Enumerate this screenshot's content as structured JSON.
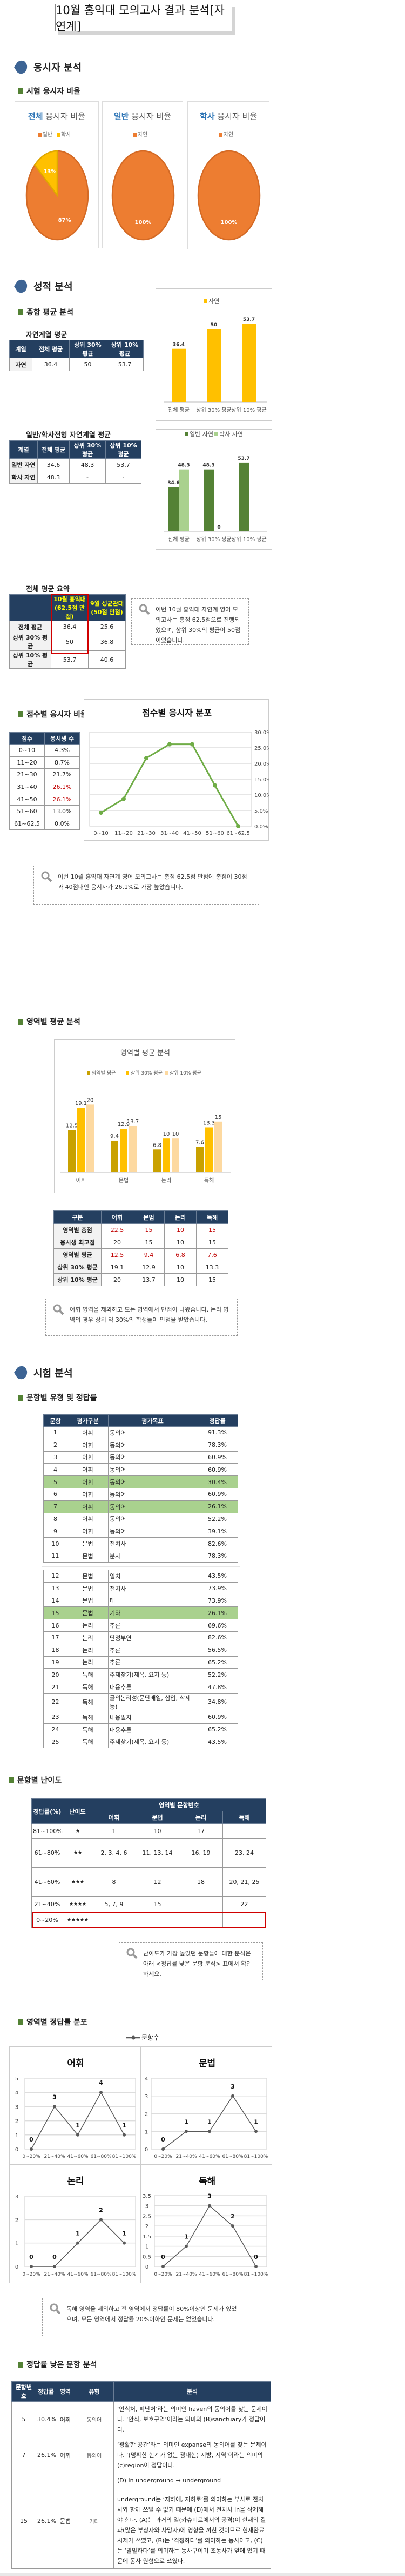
{
  "title": "10월 홍익대 모의고사 결과 분석[자연계]",
  "sections": {
    "applicants": "응시자 분석",
    "scores": "성적 분석",
    "exam": "시험 분석"
  },
  "subheadings": {
    "ratio": "시험 응시자 비율",
    "overall": "종합 평균 분석",
    "score_dist": "점수별 응시자 비율",
    "area_avg": "영역별 평균 분석",
    "item_type": "문항별 유형 및 정답률",
    "difficulty": "문항별 난이도",
    "area_rate": "영역별 정답률 분포",
    "low_items": "정답률 낮은 문항 분석"
  },
  "colors": {
    "navy": "#243F60",
    "orange": "#ED7D31",
    "yellow": "#FFC000",
    "green": "#548235",
    "light_green": "#A9D18E",
    "red": "#C00000",
    "accent_blue": "#2E75B6"
  },
  "pies": [
    {
      "title_accent": "전체",
      "title_rest": " 응시자 비율",
      "legend": [
        {
          "label": "일반",
          "color": "#ED7D31"
        },
        {
          "label": "학사",
          "color": "#FFC000"
        }
      ],
      "slices": [
        {
          "label": "일반",
          "value": 87,
          "text": "87%",
          "color": "#ED7D31"
        },
        {
          "label": "학사",
          "value": 13,
          "text": "13%",
          "color": "#FFC000"
        }
      ]
    },
    {
      "title_accent": "일반",
      "title_rest": " 응시자 비율",
      "legend": [
        {
          "label": "자연",
          "color": "#ED7D31"
        }
      ],
      "slices": [
        {
          "label": "자연",
          "value": 100,
          "text": "100%",
          "color": "#ED7D31"
        }
      ]
    },
    {
      "title_accent": "학사",
      "title_rest": " 응시자 비율",
      "legend": [
        {
          "label": "자연",
          "color": "#ED7D31"
        }
      ],
      "slices": [
        {
          "label": "자연",
          "value": 100,
          "text": "100%",
          "color": "#ED7D31"
        }
      ]
    }
  ],
  "natural_avg": {
    "caption": "자연계열 평균",
    "headers": [
      "계열",
      "전체 평균",
      "상위 30% 평균",
      "상위 10% 평균"
    ],
    "rows": [
      [
        "자연",
        "36.4",
        "50",
        "53.7"
      ]
    ]
  },
  "track_avg": {
    "caption": "일반/학사전형 자연계열 평균",
    "headers": [
      "계열",
      "전체 평균",
      "상위 30% 평균",
      "상위 10% 평균"
    ],
    "rows": [
      [
        "일반 자연",
        "34.6",
        "48.3",
        "53.7"
      ],
      [
        "학사 자연",
        "48.3",
        "-",
        "-"
      ]
    ]
  },
  "summary": {
    "caption": "전체 평균 요약",
    "headers": [
      "",
      "10월 홍익대\n(62.5점 만점)",
      "9월 성균관대\n(50점 만점)"
    ],
    "rows": [
      [
        "전체 평균",
        "36.4",
        "25.6"
      ],
      [
        "상위 30% 평균",
        "50",
        "36.8"
      ],
      [
        "상위 10% 평균",
        "53.7",
        "40.6"
      ]
    ]
  },
  "score_table": {
    "headers": [
      "점수",
      "응시생 수"
    ],
    "rows": [
      [
        "0~10",
        "4.3%"
      ],
      [
        "11~20",
        "8.7%"
      ],
      [
        "21~30",
        "21.7%"
      ],
      [
        "31~40",
        "26.1%"
      ],
      [
        "41~50",
        "26.1%"
      ],
      [
        "51~60",
        "13.0%"
      ],
      [
        "61~62.5",
        "0.0%"
      ]
    ],
    "emphasized": [
      "31~40",
      "41~50"
    ]
  },
  "area_table": {
    "headers": [
      "구분",
      "어휘",
      "문법",
      "논리",
      "독해"
    ],
    "rows": [
      [
        "영역별 총점",
        "22.5",
        "15",
        "10",
        "15"
      ],
      [
        "응시생 최고점",
        "20",
        "15",
        "10",
        "15"
      ],
      [
        "영역별 평균",
        "12.5",
        "9.4",
        "6.8",
        "7.6"
      ],
      [
        "상위 30% 평균",
        "19.1",
        "12.9",
        "10",
        "13.3"
      ],
      [
        "상위 10% 평균",
        "20",
        "13.7",
        "10",
        "15"
      ]
    ],
    "red_rows": [
      "영역별 총점",
      "영역별 평균"
    ]
  },
  "items": {
    "headers": [
      "문항",
      "평가구분",
      "평가목표",
      "정답률"
    ],
    "rows": [
      [
        "1",
        "어휘",
        "동의어",
        "91.3%"
      ],
      [
        "2",
        "어휘",
        "동의어",
        "78.3%"
      ],
      [
        "3",
        "어휘",
        "동의어",
        "60.9%"
      ],
      [
        "4",
        "어휘",
        "동의어",
        "60.9%"
      ],
      [
        "5",
        "어휘",
        "동의어",
        "30.4%"
      ],
      [
        "6",
        "어휘",
        "동의어",
        "60.9%"
      ],
      [
        "7",
        "어휘",
        "동의어",
        "26.1%"
      ],
      [
        "8",
        "어휘",
        "동의어",
        "52.2%"
      ],
      [
        "9",
        "어휘",
        "동의어",
        "39.1%"
      ],
      [
        "10",
        "문법",
        "전치사",
        "82.6%"
      ],
      [
        "11",
        "문법",
        "분사",
        "78.3%"
      ],
      [
        "12",
        "문법",
        "일치",
        "43.5%"
      ],
      [
        "13",
        "문법",
        "전치사",
        "73.9%"
      ],
      [
        "14",
        "문법",
        "태",
        "73.9%"
      ],
      [
        "15",
        "문법",
        "기타",
        "26.1%"
      ],
      [
        "16",
        "논리",
        "추론",
        "69.6%"
      ],
      [
        "17",
        "논리",
        "단정부연",
        "82.6%"
      ],
      [
        "18",
        "논리",
        "추론",
        "56.5%"
      ],
      [
        "19",
        "논리",
        "추론",
        "65.2%"
      ],
      [
        "20",
        "독해",
        "주제찾기(제목, 요지 등)",
        "52.2%"
      ],
      [
        "21",
        "독해",
        "내용추론",
        "47.8%"
      ],
      [
        "22",
        "독해",
        "글의논리성(문단배열, 삽입, 삭제 등)",
        "34.8%"
      ],
      [
        "23",
        "독해",
        "내용일치",
        "60.9%"
      ],
      [
        "24",
        "독해",
        "내용추론",
        "65.2%"
      ],
      [
        "25",
        "독해",
        "주제찾기(제목, 요지 등)",
        "43.5%"
      ]
    ],
    "highlighted": [
      "5",
      "7",
      "15"
    ]
  },
  "difficulty": {
    "headers": {
      "rate": "정답률(%)",
      "level": "난이도",
      "group": "영역별 문항번호",
      "areas": [
        "어휘",
        "문법",
        "논리",
        "독해"
      ]
    },
    "rows": [
      {
        "rate": "81~100%",
        "stars": "★",
        "cells": [
          "1",
          "10",
          "17",
          ""
        ]
      },
      {
        "rate": "61~80%",
        "stars": "★★",
        "cells": [
          "2, 3, 4, 6",
          "11, 13, 14",
          "16, 19",
          "23, 24"
        ]
      },
      {
        "rate": "41~60%",
        "stars": "★★★",
        "cells": [
          "8",
          "12",
          "18",
          "20, 21, 25"
        ]
      },
      {
        "rate": "21~40%",
        "stars": "★★★★",
        "cells": [
          "5, 7, 9",
          "15",
          "",
          "22"
        ]
      },
      {
        "rate": "0~20%",
        "stars": "★★★★★",
        "cells": [
          "",
          "",
          "",
          ""
        ]
      }
    ]
  },
  "notes": {
    "summary": "이번 10월 홍익대 자연계 영어 모의고사는 총점 62.5점으로 진행되었으며, 상위 30%의 평균이 50점이었습니다.",
    "distribution": "이번 10월 홍익대 자연계 영어 모의고사는 총점 62.5점 만점에 총점이 30점과 40점대인 응시자가 26.1%로 가장 높았습니다.",
    "area": "어휘 영역을 제외하고 모든 영역에서 만점이 나왔습니다. 논리 영역의 경우 상위 약 30%의 학생들이 만점을 받았습니다.",
    "difficulty": "난이도가 가장 높았던 문항들에 대한 분석은 아래 <정답률 낮은 문항 분석> 표에서 확인하세요.",
    "area_rate": "독해 영역을 제외하고 전 영역에서 정답률이 80%이상인 문제가 있었으며, 모든 영역에서 정답률 20%이하인 문제는 없었습니다."
  },
  "low_items": {
    "headers": [
      "문항번호",
      "정답률",
      "영역",
      "유형",
      "분석"
    ],
    "rows": [
      {
        "no": "5",
        "rate": "30.4%",
        "area": "어휘",
        "type": "동의어",
        "analysis": [
          "‘안식처, 피난처’라는 의미인 haven의 동의어를 찾는 문제이다. ‘안식, 보호구역’이라는 의미의 (B)sanctuary가 정답이다."
        ]
      },
      {
        "no": "7",
        "rate": "26.1%",
        "area": "어휘",
        "type": "동의어",
        "analysis": [
          "‘광활한 공간’라는 의미인 expanse의 동의어를 찾는 문제이다. ‘(명확한 한계가 없는 광대한) 지방, 지역’이라는 의미의 (c)region이 정답이다."
        ]
      },
      {
        "no": "15",
        "rate": "26.1%",
        "area": "문법",
        "type": "기타",
        "analysis": [
          "(D) in underground → underground",
          "underground는 ‘지하에, 지하로’를 의미하는 부사로 전치사와 함께 쓰일 수 없기 때문에 (D)에서 전치사 in을 삭제해야 한다. (A)는 과거의 일(카슈미르에서의 공격)이 현재의 결과(많은 부상자와 사망자)에 영향을 끼친 것이므로 현재완료 시제가 쓰였고, (B)는 ‘걱정하다’를 의미하는 동사이고, (C)는 ‘발발하다’를 의미하는 동사구이며 조동사가 앞에 있기 때문에 동사 원형으로 쓰였다."
        ]
      }
    ]
  },
  "chart_data": [
    {
      "id": "natural",
      "type": "bar",
      "title": "",
      "categories": [
        "전체 평균",
        "상위 30% 평균",
        "상위 10% 평균"
      ],
      "series": [
        {
          "name": "자연",
          "values": [
            36.4,
            50,
            53.7
          ],
          "color": "#FFC000"
        }
      ],
      "ylim": [
        0,
        60
      ],
      "legend": "top"
    },
    {
      "id": "track",
      "type": "bar",
      "title": "",
      "categories": [
        "전체 평균",
        "상위 30% 평균",
        "상위 10% 평균"
      ],
      "series": [
        {
          "name": "일반 자연",
          "values": [
            34.6,
            48.3,
            53.7
          ],
          "color": "#548235"
        },
        {
          "name": "학사 자연",
          "values": [
            48.3,
            0,
            null
          ],
          "color": "#A9D18E"
        }
      ],
      "ylim": [
        0,
        60
      ],
      "legend": "top"
    },
    {
      "id": "distribution",
      "type": "line",
      "title": "점수별 응시자 분포",
      "categories": [
        "0~10",
        "11~20",
        "21~30",
        "31~40",
        "41~50",
        "51~60",
        "61~62.5"
      ],
      "series": [
        {
          "name": "응시생 수",
          "values": [
            4.3,
            8.7,
            21.7,
            26.1,
            26.1,
            13.0,
            0.0
          ],
          "color": "#70AD47"
        }
      ],
      "ylim": [
        0,
        30
      ],
      "yticks": [
        "0.0%",
        "5.0%",
        "10.0%",
        "15.0%",
        "20.0%",
        "25.0%",
        "30.0%"
      ],
      "grid": true
    },
    {
      "id": "area",
      "type": "bar",
      "title": "영역별 평균 분석",
      "categories": [
        "어휘",
        "문법",
        "논리",
        "독해"
      ],
      "series": [
        {
          "name": "영역별 평균",
          "values": [
            12.5,
            9.4,
            6.8,
            7.6
          ],
          "color": "#C9A100"
        },
        {
          "name": "상위 30% 평균",
          "values": [
            19.1,
            12.9,
            10,
            13.3
          ],
          "color": "#FFC000"
        },
        {
          "name": "상위 10% 평균",
          "values": [
            20,
            13.7,
            10,
            15
          ],
          "color": "#FDD9A0"
        }
      ],
      "ylim": [
        0,
        25
      ],
      "legend": "top"
    },
    {
      "id": "vocab",
      "type": "line",
      "title": "어휘",
      "legend_label": "문항수",
      "categories": [
        "0~20%",
        "21~40%",
        "41~60%",
        "61~80%",
        "81~100%"
      ],
      "series": [
        {
          "name": "문항수",
          "values": [
            0,
            3,
            1,
            4,
            1
          ]
        }
      ],
      "ylim": [
        0,
        5
      ],
      "ystep": 1,
      "yticks": [
        "0",
        "1",
        "2",
        "3",
        "4",
        "5"
      ]
    },
    {
      "id": "grammar",
      "type": "line",
      "title": "문법",
      "categories": [
        "0~20%",
        "21~40%",
        "41~60%",
        "61~80%",
        "81~100%"
      ],
      "series": [
        {
          "name": "문항수",
          "values": [
            0,
            1,
            1,
            3,
            1
          ]
        }
      ],
      "ylim": [
        0,
        4
      ],
      "ystep": 1,
      "yticks": [
        "0",
        "1",
        "2",
        "3",
        "4"
      ]
    },
    {
      "id": "logic",
      "type": "line",
      "title": "논리",
      "categories": [
        "0~20%",
        "21~40%",
        "41~60%",
        "61~80%",
        "81~100%"
      ],
      "series": [
        {
          "name": "문항수",
          "values": [
            0,
            0,
            1,
            2,
            1
          ]
        }
      ],
      "ylim": [
        0,
        3
      ],
      "ystep": 1,
      "yticks": [
        "0",
        "1",
        "2",
        "3"
      ]
    },
    {
      "id": "reading",
      "type": "line",
      "title": "독해",
      "categories": [
        "0~20%",
        "21~40%",
        "41~60%",
        "61~80%",
        "81~100%"
      ],
      "series": [
        {
          "name": "문항수",
          "values": [
            0,
            1,
            3,
            2,
            0
          ]
        }
      ],
      "ylim": [
        0,
        3.5
      ],
      "ystep": 0.5,
      "yticks": [
        "0",
        "0.5",
        "1",
        "1.5",
        "2",
        "2.5",
        "3",
        "3.5"
      ]
    }
  ]
}
